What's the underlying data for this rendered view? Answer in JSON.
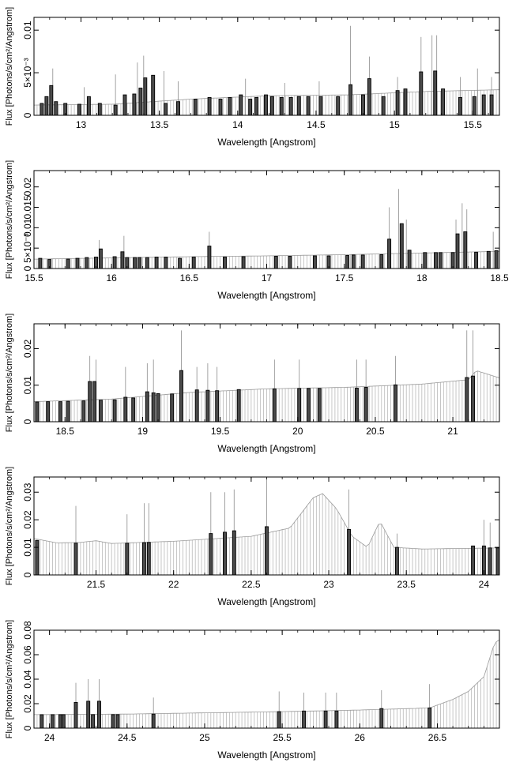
{
  "chart_data": [
    {
      "type": "bar",
      "xlabel": "Wavelength [Angstrom]",
      "ylabel": "Flux [Photons/s/cm²/Angstrom]",
      "xlim": [
        12.7,
        15.67
      ],
      "ylim": [
        0,
        0.0115
      ],
      "x_ticks": [
        13,
        13.5,
        14,
        14.5,
        15,
        15.5
      ],
      "x_tick_labels": [
        "13",
        "13.5",
        "14",
        "14.5",
        "15",
        "15.5"
      ],
      "y_ticks": [
        0,
        0.005,
        0.01
      ],
      "y_tick_labels": [
        "0",
        "5×10⁻³",
        "0.01"
      ],
      "continuum": [
        [
          12.7,
          0.0012
        ],
        [
          13.2,
          0.0013
        ],
        [
          13.7,
          0.0019
        ],
        [
          14.2,
          0.0023
        ],
        [
          14.7,
          0.0024
        ],
        [
          15.2,
          0.0028
        ],
        [
          15.67,
          0.003
        ]
      ],
      "bars": [
        [
          12.75,
          0.0014
        ],
        [
          12.78,
          0.0022
        ],
        [
          12.81,
          0.0035
        ],
        [
          12.84,
          0.0016
        ],
        [
          12.9,
          0.0014
        ],
        [
          12.99,
          0.0013
        ],
        [
          13.05,
          0.0022
        ],
        [
          13.12,
          0.0014
        ],
        [
          13.22,
          0.0012
        ],
        [
          13.28,
          0.0024
        ],
        [
          13.34,
          0.0025
        ],
        [
          13.38,
          0.0032
        ],
        [
          13.41,
          0.0044
        ],
        [
          13.46,
          0.0047
        ],
        [
          13.54,
          0.0014
        ],
        [
          13.62,
          0.0016
        ],
        [
          13.73,
          0.0019
        ],
        [
          13.82,
          0.0021
        ],
        [
          13.89,
          0.0019
        ],
        [
          13.95,
          0.0021
        ],
        [
          14.02,
          0.0024
        ],
        [
          14.08,
          0.0019
        ],
        [
          14.12,
          0.0021
        ],
        [
          14.18,
          0.0024
        ],
        [
          14.22,
          0.0022
        ],
        [
          14.28,
          0.0021
        ],
        [
          14.34,
          0.0021
        ],
        [
          14.39,
          0.0022
        ],
        [
          14.45,
          0.0022
        ],
        [
          14.53,
          0.0022
        ],
        [
          14.64,
          0.0022
        ],
        [
          14.72,
          0.0036
        ],
        [
          14.8,
          0.0024
        ],
        [
          14.84,
          0.0043
        ],
        [
          14.93,
          0.0022
        ],
        [
          15.02,
          0.0029
        ],
        [
          15.07,
          0.0031
        ],
        [
          15.17,
          0.0051
        ],
        [
          15.26,
          0.0052
        ],
        [
          15.31,
          0.0031
        ],
        [
          15.42,
          0.0021
        ],
        [
          15.51,
          0.0022
        ],
        [
          15.57,
          0.0024
        ],
        [
          15.62,
          0.0024
        ]
      ],
      "upper_limits": [
        [
          12.82,
          0.0055
        ],
        [
          13.02,
          0.0033
        ],
        [
          13.22,
          0.0048
        ],
        [
          13.36,
          0.0062
        ],
        [
          13.4,
          0.007
        ],
        [
          13.53,
          0.0052
        ],
        [
          13.62,
          0.004
        ],
        [
          14.05,
          0.0043
        ],
        [
          14.3,
          0.0038
        ],
        [
          14.52,
          0.004
        ],
        [
          14.72,
          0.0105
        ],
        [
          14.84,
          0.0069
        ],
        [
          15.02,
          0.0045
        ],
        [
          15.17,
          0.0092
        ],
        [
          15.24,
          0.0094
        ],
        [
          15.27,
          0.0094
        ],
        [
          15.42,
          0.0045
        ],
        [
          15.53,
          0.0055
        ],
        [
          15.62,
          0.0045
        ]
      ]
    },
    {
      "type": "bar",
      "xlabel": "Wavelength [Angstrom]",
      "ylabel": "Flux [Photons/s/cm²/Angstrom]",
      "xlim": [
        15.5,
        18.5
      ],
      "ylim": [
        0,
        0.024
      ],
      "x_ticks": [
        15.5,
        16,
        16.5,
        17,
        17.5,
        18,
        18.5
      ],
      "x_tick_labels": [
        "15.5",
        "16",
        "16.5",
        "17",
        "17.5",
        "18",
        "18.5"
      ],
      "y_ticks": [
        0,
        0.005,
        0.01,
        0.015,
        0.02
      ],
      "y_tick_labels": [
        "0",
        "5×10⁻³",
        "0.01",
        "0.015",
        "0.02"
      ],
      "continuum": [
        [
          15.5,
          0.0023
        ],
        [
          16.0,
          0.0026
        ],
        [
          16.5,
          0.0029
        ],
        [
          17.0,
          0.0031
        ],
        [
          17.5,
          0.0034
        ],
        [
          18.0,
          0.0038
        ],
        [
          18.5,
          0.0042
        ]
      ],
      "bars": [
        [
          15.54,
          0.0025
        ],
        [
          15.6,
          0.0022
        ],
        [
          15.72,
          0.0023
        ],
        [
          15.78,
          0.0025
        ],
        [
          15.84,
          0.0027
        ],
        [
          15.9,
          0.0028
        ],
        [
          15.93,
          0.0048
        ],
        [
          16.02,
          0.0029
        ],
        [
          16.07,
          0.0041
        ],
        [
          16.1,
          0.0027
        ],
        [
          16.15,
          0.0027
        ],
        [
          16.18,
          0.0027
        ],
        [
          16.23,
          0.0027
        ],
        [
          16.29,
          0.0028
        ],
        [
          16.35,
          0.0028
        ],
        [
          16.44,
          0.0025
        ],
        [
          16.53,
          0.0028
        ],
        [
          16.63,
          0.0055
        ],
        [
          16.73,
          0.0028
        ],
        [
          16.85,
          0.0029
        ],
        [
          17.06,
          0.003
        ],
        [
          17.15,
          0.003
        ],
        [
          17.31,
          0.0031
        ],
        [
          17.4,
          0.0031
        ],
        [
          17.52,
          0.0032
        ],
        [
          17.56,
          0.0033
        ],
        [
          17.62,
          0.0033
        ],
        [
          17.74,
          0.0034
        ],
        [
          17.79,
          0.0072
        ],
        [
          17.87,
          0.011
        ],
        [
          17.92,
          0.0045
        ],
        [
          18.02,
          0.0039
        ],
        [
          18.09,
          0.0039
        ],
        [
          18.12,
          0.0039
        ],
        [
          18.2,
          0.0039
        ],
        [
          18.23,
          0.0085
        ],
        [
          18.28,
          0.009
        ],
        [
          18.35,
          0.004
        ],
        [
          18.43,
          0.0042
        ],
        [
          18.48,
          0.0044
        ]
      ],
      "upper_limits": [
        [
          15.92,
          0.007
        ],
        [
          16.08,
          0.008
        ],
        [
          16.63,
          0.009
        ],
        [
          17.79,
          0.015
        ],
        [
          17.85,
          0.0195
        ],
        [
          17.9,
          0.012
        ],
        [
          18.22,
          0.012
        ],
        [
          18.26,
          0.016
        ],
        [
          18.29,
          0.0145
        ],
        [
          18.46,
          0.009
        ]
      ]
    },
    {
      "type": "bar",
      "xlabel": "Wavelength [Angstrom]",
      "ylabel": "Flux [Photons/s/cm²/Angstrom]",
      "xlim": [
        18.3,
        21.3
      ],
      "ylim": [
        0,
        0.0268
      ],
      "x_ticks": [
        18.5,
        19,
        19.5,
        20,
        20.5,
        21
      ],
      "x_tick_labels": [
        "18.5",
        "19",
        "19.5",
        "20",
        "20.5",
        "21"
      ],
      "y_ticks": [
        0,
        0.01,
        0.02
      ],
      "y_tick_labels": [
        "0",
        "0.01",
        "0.02"
      ],
      "continuum": [
        [
          18.3,
          0.0055
        ],
        [
          18.8,
          0.0062
        ],
        [
          19.3,
          0.008
        ],
        [
          19.8,
          0.009
        ],
        [
          20.3,
          0.0094
        ],
        [
          20.8,
          0.0103
        ],
        [
          21.1,
          0.0115
        ],
        [
          21.15,
          0.014
        ],
        [
          21.3,
          0.012
        ]
      ],
      "bars": [
        [
          18.32,
          0.0054
        ],
        [
          18.39,
          0.0055
        ],
        [
          18.47,
          0.0055
        ],
        [
          18.52,
          0.0056
        ],
        [
          18.62,
          0.0057
        ],
        [
          18.66,
          0.011
        ],
        [
          18.69,
          0.011
        ],
        [
          18.73,
          0.0059
        ],
        [
          18.82,
          0.006
        ],
        [
          18.89,
          0.0067
        ],
        [
          18.94,
          0.0065
        ],
        [
          19.03,
          0.0082
        ],
        [
          19.07,
          0.0079
        ],
        [
          19.1,
          0.0077
        ],
        [
          19.19,
          0.0076
        ],
        [
          19.25,
          0.014
        ],
        [
          19.35,
          0.0087
        ],
        [
          19.42,
          0.0086
        ],
        [
          19.48,
          0.0085
        ],
        [
          19.62,
          0.0088
        ],
        [
          19.85,
          0.009
        ],
        [
          20.01,
          0.0091
        ],
        [
          20.07,
          0.0091
        ],
        [
          20.14,
          0.0091
        ],
        [
          20.38,
          0.0092
        ],
        [
          20.44,
          0.0094
        ],
        [
          20.63,
          0.0101
        ],
        [
          21.09,
          0.0121
        ],
        [
          21.13,
          0.0125
        ]
      ],
      "upper_limits": [
        [
          18.66,
          0.018
        ],
        [
          18.7,
          0.017
        ],
        [
          18.89,
          0.015
        ],
        [
          19.03,
          0.016
        ],
        [
          19.07,
          0.017
        ],
        [
          19.25,
          0.025
        ],
        [
          19.35,
          0.015
        ],
        [
          19.42,
          0.016
        ],
        [
          19.48,
          0.015
        ],
        [
          19.85,
          0.017
        ],
        [
          20.01,
          0.017
        ],
        [
          20.38,
          0.017
        ],
        [
          20.44,
          0.017
        ],
        [
          20.63,
          0.018
        ],
        [
          21.09,
          0.025
        ],
        [
          21.13,
          0.025
        ]
      ]
    },
    {
      "type": "bar",
      "xlabel": "Wavelength [Angstrom]",
      "ylabel": "Flux [Photons/s/cm²/Angstrom]",
      "xlim": [
        21.1,
        24.1
      ],
      "ylim": [
        0,
        0.0355
      ],
      "x_ticks": [
        21.5,
        22,
        22.5,
        23,
        23.5,
        24
      ],
      "x_tick_labels": [
        "21.5",
        "22",
        "22.5",
        "23",
        "23.5",
        "24"
      ],
      "y_ticks": [
        0,
        0.01,
        0.02,
        0.03
      ],
      "y_tick_labels": [
        "0",
        "0.01",
        "0.02",
        "0.03"
      ],
      "continuum": [
        [
          21.1,
          0.0132
        ],
        [
          21.25,
          0.0116
        ],
        [
          21.4,
          0.0118
        ],
        [
          21.5,
          0.0124
        ],
        [
          21.6,
          0.0114
        ],
        [
          22.0,
          0.0122
        ],
        [
          22.5,
          0.014
        ],
        [
          22.75,
          0.017
        ],
        [
          22.9,
          0.028
        ],
        [
          22.96,
          0.0295
        ],
        [
          23.05,
          0.024
        ],
        [
          23.15,
          0.014
        ],
        [
          23.25,
          0.01
        ],
        [
          23.33,
          0.0195
        ],
        [
          23.42,
          0.01
        ],
        [
          23.6,
          0.0094
        ],
        [
          24.0,
          0.0097
        ],
        [
          24.1,
          0.0098
        ]
      ],
      "bars": [
        [
          21.12,
          0.0125
        ],
        [
          21.37,
          0.0115
        ],
        [
          21.7,
          0.0115
        ],
        [
          21.81,
          0.0117
        ],
        [
          21.84,
          0.0118
        ],
        [
          22.24,
          0.015
        ],
        [
          22.33,
          0.0155
        ],
        [
          22.39,
          0.016
        ],
        [
          22.6,
          0.0175
        ],
        [
          23.13,
          0.0165
        ],
        [
          23.44,
          0.01
        ],
        [
          23.93,
          0.0105
        ],
        [
          24.0,
          0.0105
        ],
        [
          24.04,
          0.0098
        ],
        [
          24.09,
          0.0098
        ]
      ],
      "upper_limits": [
        [
          21.37,
          0.025
        ],
        [
          21.7,
          0.022
        ],
        [
          21.81,
          0.026
        ],
        [
          21.84,
          0.026
        ],
        [
          22.24,
          0.03
        ],
        [
          22.33,
          0.03
        ],
        [
          22.39,
          0.031
        ],
        [
          22.6,
          0.035
        ],
        [
          23.13,
          0.031
        ],
        [
          23.44,
          0.015
        ],
        [
          24.0,
          0.02
        ],
        [
          24.04,
          0.019
        ]
      ]
    },
    {
      "type": "bar",
      "xlabel": "Wavelength [Angstrom]",
      "ylabel": "Flux [Photons/s/cm²/Angstrom]",
      "xlim": [
        23.9,
        26.9
      ],
      "ylim": [
        0,
        0.08
      ],
      "x_ticks": [
        24,
        24.5,
        25,
        25.5,
        26,
        26.5
      ],
      "x_tick_labels": [
        "24",
        "24.5",
        "25",
        "25.5",
        "26",
        "26.5"
      ],
      "y_ticks": [
        0,
        0.02,
        0.04,
        0.06,
        0.08
      ],
      "y_tick_labels": [
        "0",
        "0.02",
        "0.04",
        "0.06",
        "0.08"
      ],
      "continuum": [
        [
          23.9,
          0.011
        ],
        [
          24.5,
          0.0115
        ],
        [
          25.0,
          0.0125
        ],
        [
          25.5,
          0.0135
        ],
        [
          26.0,
          0.0148
        ],
        [
          26.45,
          0.0165
        ],
        [
          26.6,
          0.0235
        ],
        [
          26.7,
          0.03
        ],
        [
          26.8,
          0.042
        ],
        [
          26.87,
          0.07
        ],
        [
          26.9,
          0.072
        ]
      ],
      "bars": [
        [
          23.95,
          0.011
        ],
        [
          24.02,
          0.011
        ],
        [
          24.07,
          0.011
        ],
        [
          24.09,
          0.011
        ],
        [
          24.17,
          0.021
        ],
        [
          24.25,
          0.022
        ],
        [
          24.28,
          0.011
        ],
        [
          24.32,
          0.022
        ],
        [
          24.41,
          0.011
        ],
        [
          24.44,
          0.011
        ],
        [
          24.67,
          0.0115
        ],
        [
          25.48,
          0.0135
        ],
        [
          25.64,
          0.014
        ],
        [
          25.78,
          0.014
        ],
        [
          25.85,
          0.014
        ],
        [
          26.14,
          0.016
        ],
        [
          26.45,
          0.0165
        ]
      ],
      "upper_limits": [
        [
          24.17,
          0.037
        ],
        [
          24.25,
          0.04
        ],
        [
          24.32,
          0.04
        ],
        [
          24.67,
          0.025
        ],
        [
          25.48,
          0.03
        ],
        [
          25.64,
          0.029
        ],
        [
          25.78,
          0.029
        ],
        [
          25.85,
          0.029
        ],
        [
          26.14,
          0.031
        ],
        [
          26.45,
          0.036
        ]
      ]
    }
  ]
}
